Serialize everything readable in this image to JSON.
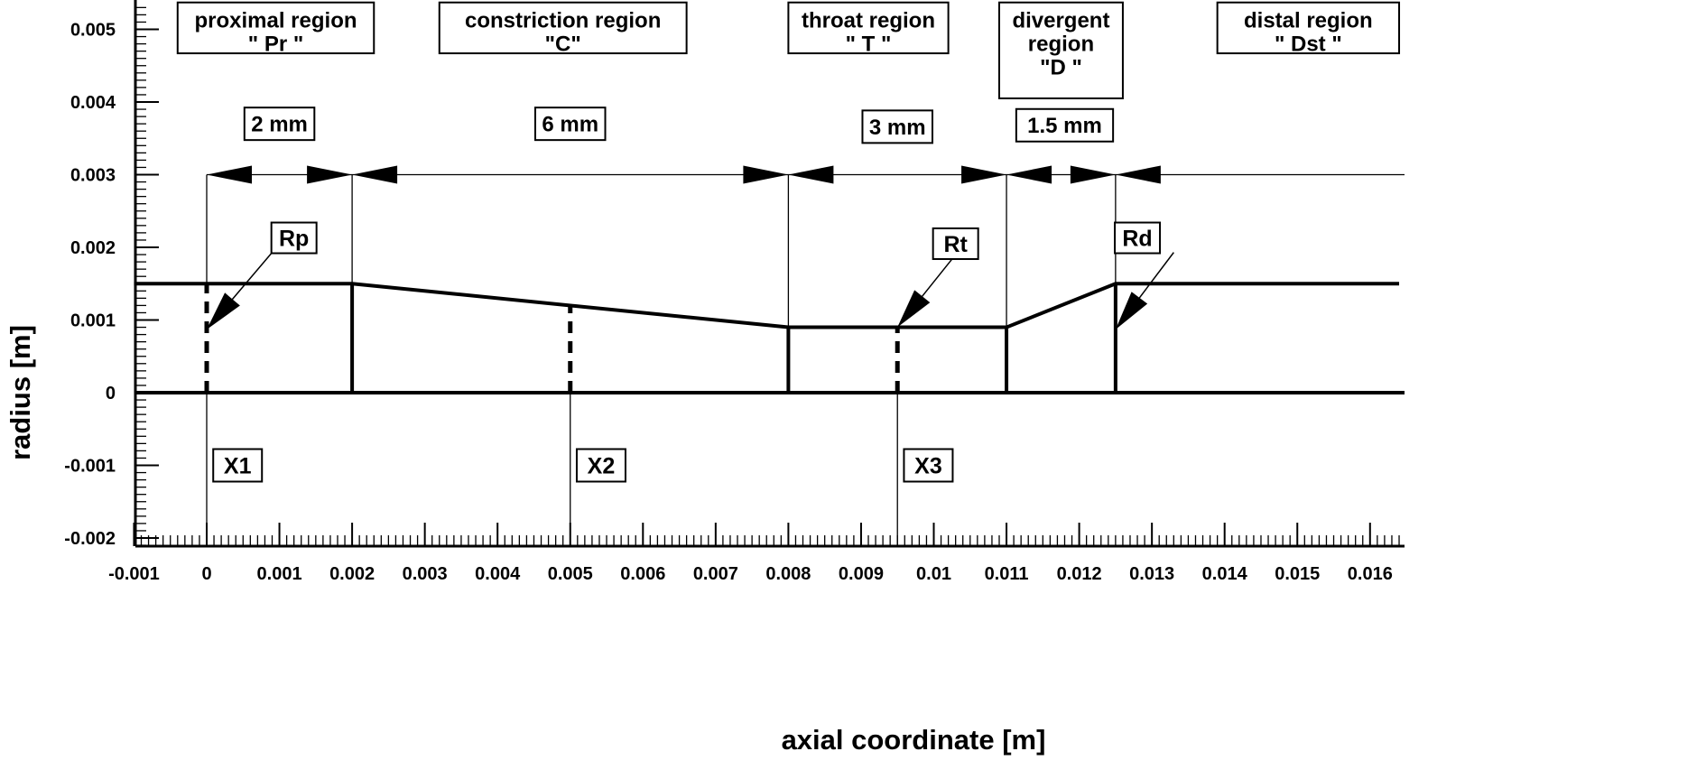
{
  "chart_data": {
    "type": "line",
    "xlabel": "axial coordinate [m]",
    "ylabel": "radius [m]",
    "xlim": [
      -0.001,
      0.0164
    ],
    "ylim": [
      -0.0021,
      0.0054
    ],
    "x_ticks": [
      "-0.001",
      "0",
      "0.001",
      "0.002",
      "0.003",
      "0.004",
      "0.005",
      "0.006",
      "0.007",
      "0.008",
      "0.009",
      "0.01",
      "0.011",
      "0.012",
      "0.013",
      "0.014",
      "0.015",
      "0.016"
    ],
    "x_tick_values": [
      -0.001,
      0,
      0.001,
      0.002,
      0.003,
      0.004,
      0.005,
      0.006,
      0.007,
      0.008,
      0.009,
      0.01,
      0.011,
      0.012,
      0.013,
      0.014,
      0.015,
      0.016
    ],
    "y_ticks": [
      "-0.002",
      "-0.001",
      "0",
      "0.001",
      "0.002",
      "0.003",
      "0.004",
      "0.005"
    ],
    "y_tick_values": [
      -0.002,
      -0.001,
      0,
      0.001,
      0.002,
      0.003,
      0.004,
      0.005
    ],
    "wall_profile": {
      "x": [
        -0.001,
        0.002,
        0.008,
        0.011,
        0.0125,
        0.0164
      ],
      "y": [
        0.0015,
        0.0015,
        0.0009,
        0.0009,
        0.0015,
        0.0015
      ]
    },
    "axis_line_y": 0,
    "region_boundaries": [
      0.002,
      0.008,
      0.011,
      0.0125
    ],
    "dashed_markers": [
      {
        "x": 0,
        "y": 0.0015
      },
      {
        "x": 0.005,
        "y": 0.0012
      },
      {
        "x": 0.0095,
        "y": 0.0009
      }
    ],
    "dimension_line_y": 0.003,
    "dimensions": [
      {
        "from": 0,
        "to": 0.002,
        "label": "2 mm",
        "label_x": 0.001,
        "label_y": 0.0037
      },
      {
        "from": 0.002,
        "to": 0.008,
        "label": "6 mm",
        "label_x": 0.005,
        "label_y": 0.0037
      },
      {
        "from": 0.008,
        "to": 0.011,
        "label": "3 mm",
        "label_x": 0.0095,
        "label_y": 0.00366
      },
      {
        "from": 0.011,
        "to": 0.0125,
        "label": "1.5 mm",
        "label_x": 0.0118,
        "label_y": 0.00368
      }
    ],
    "regions": [
      {
        "lines": [
          "proximal region",
          "\" Pr \""
        ],
        "x0": -0.0004,
        "x1": 0.0023,
        "y_top": 0.00537,
        "y_bottom": 0.00467
      },
      {
        "lines": [
          "constriction region",
          "\"C\""
        ],
        "x0": 0.0032,
        "x1": 0.0066,
        "y_top": 0.00537,
        "y_bottom": 0.00467
      },
      {
        "lines": [
          "throat region",
          "\" T \""
        ],
        "x0": 0.008,
        "x1": 0.0102,
        "y_top": 0.00537,
        "y_bottom": 0.00467
      },
      {
        "lines": [
          "divergent",
          "region",
          "\"D \""
        ],
        "x0": 0.0109,
        "x1": 0.0126,
        "y_top": 0.00537,
        "y_bottom": 0.00405
      },
      {
        "lines": [
          "distal region",
          "\" Dst \""
        ],
        "x0": 0.0139,
        "x1": 0.0164,
        "y_top": 0.00537,
        "y_bottom": 0.00467
      }
    ],
    "radius_labels": [
      {
        "label": "Rp",
        "label_x": 0.0012,
        "label_y": 0.00213,
        "arrow_from_x": 0.0009,
        "arrow_from_y": 0.00193,
        "arrow_to_x": 0.0,
        "arrow_to_y": 0.00087
      },
      {
        "label": "Rt",
        "label_x": 0.0103,
        "label_y": 0.00205,
        "arrow_from_x": 0.0103,
        "arrow_from_y": 0.0019,
        "arrow_to_x": 0.0095,
        "arrow_to_y": 0.0009
      },
      {
        "label": "Rd",
        "label_x": 0.0128,
        "label_y": 0.00213,
        "arrow_from_x": 0.0133,
        "arrow_from_y": 0.00193,
        "arrow_to_x": 0.0125,
        "arrow_to_y": 0.00087
      }
    ],
    "position_labels": [
      {
        "label": "X1",
        "x": 0,
        "label_x": 0.0004,
        "label_y": -0.001
      },
      {
        "label": "X2",
        "x": 0.005,
        "label_x": 0.0054,
        "label_y": -0.001
      },
      {
        "label": "X3",
        "x": 0.0095,
        "label_x": 0.0099,
        "label_y": -0.001
      }
    ]
  }
}
